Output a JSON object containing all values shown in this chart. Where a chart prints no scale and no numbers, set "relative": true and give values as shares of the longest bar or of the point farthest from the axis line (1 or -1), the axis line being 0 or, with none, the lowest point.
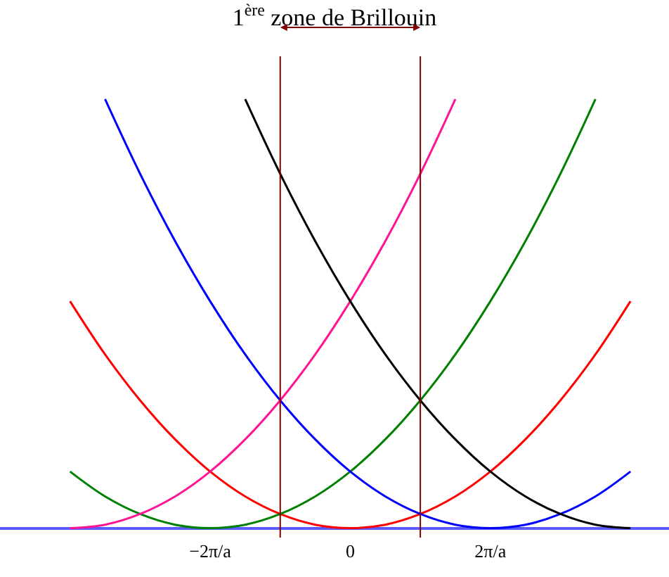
{
  "chart_data": {
    "type": "line",
    "title": "1$^{ère}$ zone de Brillouin",
    "relative": true,
    "xlim": [
      -5,
      4.55
    ],
    "xticks": [
      {
        "value": -2,
        "label": "−2π/a"
      },
      0,
      {
        "value": 2,
        "label": "2π/a"
      }
    ],
    "tick_labels": "x",
    "marker": "none",
    "line_style": "solid",
    "series": [
      {
        "color": "#ff0000",
        "x": [
          -4,
          -3.5,
          -3,
          -2.5,
          -2,
          -1.5,
          -1,
          -0.5,
          0,
          0.5,
          1,
          1.5,
          2,
          2.5,
          3,
          3.5,
          4
        ],
        "values": [
          0.529,
          0.405,
          0.298,
          0.207,
          0.132,
          0.074,
          0.033,
          0.008,
          0,
          0.008,
          0.033,
          0.074,
          0.132,
          0.207,
          0.298,
          0.405,
          0.529
        ]
      },
      {
        "color": "#008000",
        "x": [
          -4,
          -3.5,
          -3,
          -2.5,
          -2,
          -1.5,
          -1,
          -0.5,
          0,
          0.5,
          1,
          1.5,
          2,
          2.5,
          3,
          3.5
        ],
        "values": [
          0.132,
          0.074,
          0.033,
          0.008,
          0,
          0.008,
          0.033,
          0.074,
          0.132,
          0.207,
          0.298,
          0.405,
          0.529,
          0.669,
          0.826,
          1
        ]
      },
      {
        "color": "#0000ff",
        "x": [
          -3.5,
          -3,
          -2.5,
          -2,
          -1.5,
          -1,
          -0.5,
          0,
          0.5,
          1,
          1.5,
          2,
          2.5,
          3,
          3.5,
          4
        ],
        "values": [
          1,
          0.826,
          0.669,
          0.529,
          0.405,
          0.298,
          0.207,
          0.132,
          0.074,
          0.033,
          0.008,
          0,
          0.008,
          0.033,
          0.074,
          0.132
        ]
      },
      {
        "color": "#ff1493",
        "x": [
          -4,
          -3.5,
          -3,
          -2.5,
          -2,
          -1.5,
          -1,
          -0.5,
          0,
          0.5,
          1,
          1.5
        ],
        "values": [
          0,
          0.008,
          0.033,
          0.074,
          0.132,
          0.207,
          0.298,
          0.405,
          0.529,
          0.669,
          0.826,
          1
        ]
      },
      {
        "color": "#000000",
        "x": [
          -1.5,
          -1,
          -0.5,
          0,
          0.5,
          1,
          1.5,
          2,
          2.5,
          3,
          3.5,
          4
        ],
        "values": [
          1,
          0.826,
          0.669,
          0.529,
          0.405,
          0.298,
          0.207,
          0.132,
          0.074,
          0.033,
          0.008,
          0
        ]
      }
    ],
    "ref_lines": [
      {
        "axis": "x",
        "value": -1,
        "color": "#800000"
      },
      {
        "axis": "x",
        "value": 1,
        "color": "#800000"
      }
    ]
  }
}
